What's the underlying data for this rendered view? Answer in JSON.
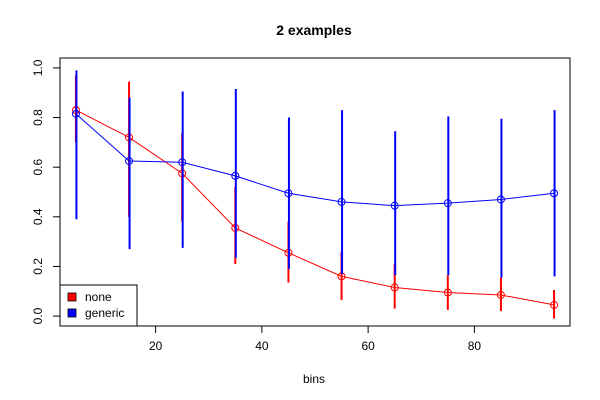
{
  "chart_data": {
    "type": "line",
    "title": "2 examples",
    "xlabel": "bins",
    "ylabel": "",
    "xlim": [
      2,
      98
    ],
    "ylim": [
      -0.04,
      1.04
    ],
    "x_ticks": [
      20,
      40,
      60,
      80
    ],
    "y_ticks": [
      0.0,
      0.2,
      0.4,
      0.6,
      0.8,
      1.0
    ],
    "y_tick_labels": [
      "0.0",
      "0.2",
      "0.4",
      "0.6",
      "0.8",
      "1.0"
    ],
    "x": [
      5,
      15,
      25,
      35,
      45,
      55,
      65,
      75,
      85,
      95
    ],
    "legend": {
      "placement": "bottom-left",
      "entries": [
        {
          "label": "none",
          "color": "#ff0000"
        },
        {
          "label": "generic",
          "color": "#0000ff"
        }
      ]
    },
    "series": [
      {
        "name": "none",
        "color": "#ff0000",
        "values": [
          0.83,
          0.72,
          0.575,
          0.355,
          0.255,
          0.16,
          0.115,
          0.095,
          0.085,
          0.045
        ],
        "lower": [
          0.7,
          0.4,
          0.38,
          0.21,
          0.135,
          0.065,
          0.03,
          0.025,
          0.02,
          -0.01
        ],
        "upper": [
          0.97,
          0.945,
          0.735,
          0.52,
          0.38,
          0.26,
          0.21,
          0.165,
          0.155,
          0.105
        ]
      },
      {
        "name": "generic",
        "color": "#0000ff",
        "values": [
          0.815,
          0.625,
          0.62,
          0.565,
          0.495,
          0.46,
          0.445,
          0.455,
          0.47,
          0.495
        ],
        "lower": [
          0.39,
          0.27,
          0.275,
          0.235,
          0.19,
          0.17,
          0.165,
          0.165,
          0.155,
          0.16
        ],
        "upper": [
          0.99,
          0.88,
          0.905,
          0.915,
          0.8,
          0.83,
          0.745,
          0.805,
          0.795,
          0.83
        ]
      }
    ]
  }
}
